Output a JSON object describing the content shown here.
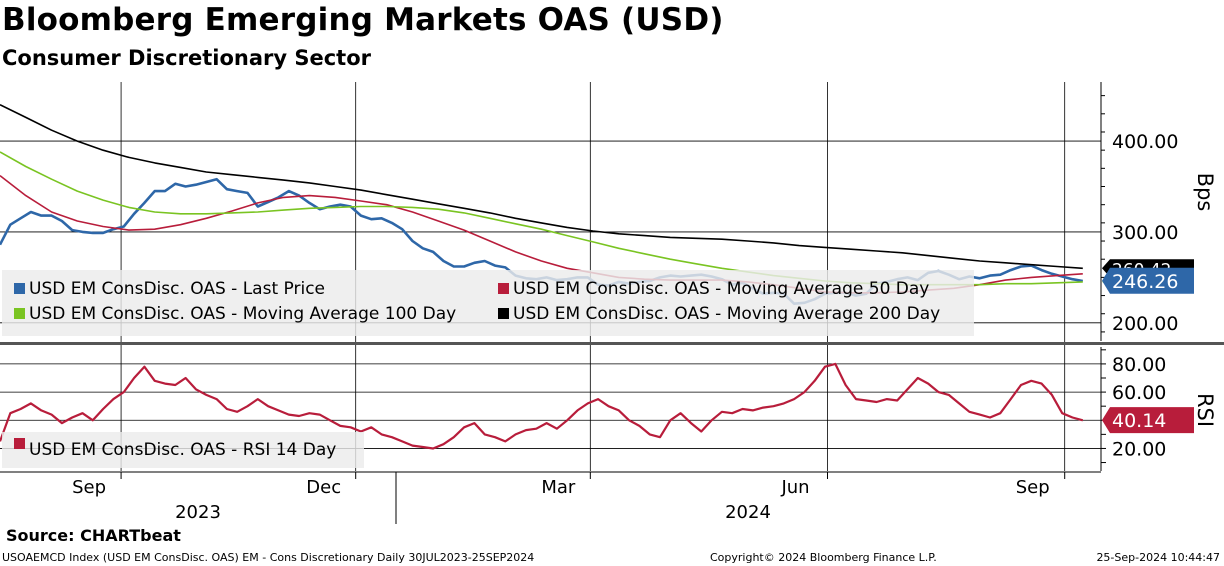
{
  "header": {
    "title": "Bloomberg Emerging Markets OAS (USD)",
    "subtitle": "Consumer Discretionary Sector"
  },
  "chart_data": [
    {
      "type": "line",
      "panel": "price",
      "title": "Bloomberg Emerging Markets OAS (USD)",
      "subtitle": "Consumer Discretionary Sector",
      "ylabel": "Bps",
      "ylim": [
        180,
        465
      ],
      "yticks": [
        200,
        300,
        400
      ],
      "ytick_labels": [
        "200.00",
        "300.00",
        "400.00"
      ],
      "x_range_days": [
        0,
        422
      ],
      "x_unit": "days since 30-Jul-2023",
      "x_tick_labels": [
        {
          "day": 33,
          "label": "Sep"
        },
        {
          "day": 124,
          "label": "Dec"
        },
        {
          "day": 215,
          "label": "Mar"
        },
        {
          "day": 307,
          "label": "Jun"
        },
        {
          "day": 399,
          "label": "Sep"
        }
      ],
      "year_labels": [
        {
          "day": 63,
          "label": "2023"
        },
        {
          "day": 268,
          "label": "2024"
        }
      ],
      "grid": true,
      "legend_position": "bottom-left",
      "series": [
        {
          "name": "USD EM ConsDisc. OAS - Last Price",
          "color": "#2e67a8",
          "last_value": 246.26,
          "last_label": "246.26",
          "x": [
            0,
            4,
            8,
            12,
            16,
            20,
            24,
            28,
            32,
            36,
            40,
            44,
            48,
            52,
            56,
            60,
            64,
            68,
            72,
            76,
            80,
            84,
            88,
            92,
            96,
            100,
            104,
            108,
            112,
            116,
            120,
            124,
            128,
            132,
            136,
            140,
            144,
            148,
            152,
            156,
            160,
            164,
            168,
            172,
            176,
            180,
            184,
            188,
            192,
            196,
            200,
            204,
            208,
            212,
            216,
            220,
            224,
            228,
            232,
            236,
            240,
            244,
            248,
            252,
            256,
            260,
            264,
            268,
            272,
            276,
            280,
            284,
            288,
            292,
            296,
            300,
            304,
            308,
            312,
            316,
            320,
            324,
            328,
            332,
            336,
            340,
            344,
            348,
            352,
            356,
            360,
            364,
            368,
            372,
            376,
            380,
            384,
            388,
            392,
            396,
            400,
            404,
            408,
            412,
            416,
            420
          ],
          "y": [
            286,
            308,
            315,
            322,
            318,
            318,
            312,
            302,
            300,
            299,
            299,
            303,
            306,
            320,
            332,
            345,
            345,
            353,
            350,
            352,
            355,
            358,
            347,
            345,
            343,
            328,
            333,
            338,
            345,
            340,
            332,
            325,
            328,
            330,
            328,
            318,
            314,
            315,
            310,
            303,
            290,
            282,
            278,
            268,
            262,
            262,
            266,
            268,
            263,
            261,
            252,
            249,
            248,
            250,
            247,
            248,
            250,
            250,
            242,
            241,
            245,
            243,
            245,
            246,
            250,
            252,
            251,
            252,
            253,
            251,
            248,
            242,
            244,
            238,
            232,
            233,
            232,
            221,
            222,
            226,
            232,
            233,
            233,
            230,
            232,
            243,
            245,
            248,
            250,
            247,
            255,
            257,
            253,
            248,
            251,
            249,
            252,
            253,
            258,
            262,
            263,
            258,
            254,
            251,
            248,
            246
          ]
        },
        {
          "name": "USD EM ConsDisc. OAS - Moving Average 50 Day",
          "color": "#b81d3b",
          "x": [
            0,
            10,
            20,
            30,
            40,
            50,
            60,
            70,
            80,
            90,
            100,
            110,
            120,
            130,
            140,
            150,
            160,
            170,
            180,
            190,
            200,
            210,
            220,
            230,
            240,
            250,
            260,
            270,
            280,
            290,
            300,
            310,
            320,
            330,
            340,
            350,
            360,
            370,
            380,
            390,
            400,
            410,
            420
          ],
          "y": [
            362,
            340,
            322,
            312,
            306,
            302,
            303,
            308,
            315,
            323,
            332,
            338,
            340,
            338,
            334,
            330,
            322,
            312,
            302,
            290,
            278,
            268,
            260,
            255,
            250,
            248,
            247,
            247,
            247,
            245,
            242,
            238,
            234,
            233,
            233,
            234,
            236,
            238,
            242,
            247,
            250,
            252,
            254
          ]
        },
        {
          "name": "USD EM ConsDisc. OAS - Moving Average 100 Day",
          "color": "#7ac422",
          "x": [
            0,
            10,
            20,
            30,
            40,
            50,
            60,
            70,
            80,
            90,
            100,
            110,
            120,
            130,
            140,
            150,
            160,
            170,
            180,
            190,
            200,
            210,
            220,
            230,
            240,
            250,
            260,
            270,
            280,
            290,
            300,
            310,
            320,
            330,
            340,
            350,
            360,
            370,
            380,
            390,
            400,
            410,
            420
          ],
          "y": [
            388,
            372,
            358,
            345,
            335,
            327,
            322,
            320,
            320,
            321,
            322,
            324,
            326,
            327,
            328,
            328,
            327,
            325,
            321,
            315,
            309,
            303,
            296,
            289,
            282,
            276,
            270,
            265,
            260,
            256,
            252,
            249,
            246,
            244,
            243,
            242,
            242,
            242,
            242,
            243,
            243,
            244,
            245
          ]
        },
        {
          "name": "USD EM ConsDisc. OAS - Moving Average 200 Day",
          "color": "#000000",
          "last_label": "260.42",
          "x": [
            0,
            10,
            20,
            30,
            40,
            50,
            60,
            70,
            80,
            90,
            100,
            110,
            120,
            130,
            140,
            150,
            160,
            170,
            180,
            190,
            200,
            210,
            220,
            230,
            240,
            250,
            260,
            270,
            280,
            290,
            300,
            310,
            320,
            330,
            340,
            350,
            360,
            370,
            380,
            390,
            400,
            410,
            420
          ],
          "y": [
            440,
            426,
            412,
            400,
            390,
            382,
            376,
            371,
            366,
            363,
            360,
            357,
            354,
            350,
            346,
            341,
            336,
            331,
            326,
            321,
            315,
            310,
            305,
            301,
            298,
            296,
            294,
            293,
            292,
            290,
            288,
            285,
            283,
            281,
            279,
            277,
            274,
            271,
            268,
            266,
            264,
            262,
            260
          ]
        }
      ]
    },
    {
      "type": "line",
      "panel": "rsi",
      "ylabel": "RSI",
      "ylim": [
        4,
        92
      ],
      "yticks": [
        20,
        40,
        60,
        80
      ],
      "ytick_labels": [
        "20.00",
        "40.00",
        "60.00",
        "80.00"
      ],
      "grid": true,
      "legend_position": "bottom-left",
      "series": [
        {
          "name": "USD EM ConsDisc. OAS - RSI 14 Day",
          "color": "#b81d3b",
          "last_value": 40.14,
          "last_label": "40.14",
          "x": [
            0,
            4,
            8,
            12,
            16,
            20,
            24,
            28,
            32,
            36,
            40,
            44,
            48,
            52,
            56,
            60,
            64,
            68,
            72,
            76,
            80,
            84,
            88,
            92,
            96,
            100,
            104,
            108,
            112,
            116,
            120,
            124,
            128,
            132,
            136,
            140,
            144,
            148,
            152,
            156,
            160,
            164,
            168,
            172,
            176,
            180,
            184,
            188,
            192,
            196,
            200,
            204,
            208,
            212,
            216,
            220,
            224,
            228,
            232,
            236,
            240,
            244,
            248,
            252,
            256,
            260,
            264,
            268,
            272,
            276,
            280,
            284,
            288,
            292,
            296,
            300,
            304,
            308,
            312,
            316,
            320,
            324,
            328,
            332,
            336,
            340,
            344,
            348,
            352,
            356,
            360,
            364,
            368,
            372,
            376,
            380,
            384,
            388,
            392,
            396,
            400,
            404,
            408,
            412,
            416,
            420
          ],
          "y": [
            25,
            45,
            48,
            52,
            47,
            44,
            38,
            42,
            45,
            40,
            48,
            55,
            60,
            70,
            78,
            68,
            66,
            65,
            70,
            62,
            58,
            55,
            48,
            46,
            50,
            55,
            50,
            47,
            44,
            43,
            45,
            44,
            40,
            36,
            35,
            32,
            35,
            30,
            28,
            25,
            22,
            21,
            20,
            23,
            28,
            35,
            38,
            30,
            28,
            25,
            30,
            33,
            34,
            38,
            34,
            40,
            47,
            52,
            55,
            50,
            47,
            40,
            36,
            30,
            28,
            40,
            45,
            38,
            32,
            40,
            46,
            45,
            48,
            47,
            49,
            50,
            52,
            55,
            60,
            68,
            78,
            80,
            65,
            55,
            54,
            53,
            55,
            54,
            62,
            70,
            66,
            60,
            58,
            52,
            46,
            44,
            42,
            45,
            55,
            65,
            68,
            66,
            58,
            45,
            42,
            40
          ]
        }
      ]
    }
  ],
  "source": {
    "label": "Source: CHARTbeat"
  },
  "footer": {
    "index_info": "USOAEMCD Index (USD EM ConsDisc. OAS) EM - Cons Discretionary  Daily 30JUL2023-25SEP2024",
    "copyright": "Copyright© 2024 Bloomberg Finance L.P.",
    "timestamp": "25-Sep-2024 10:44:47"
  }
}
